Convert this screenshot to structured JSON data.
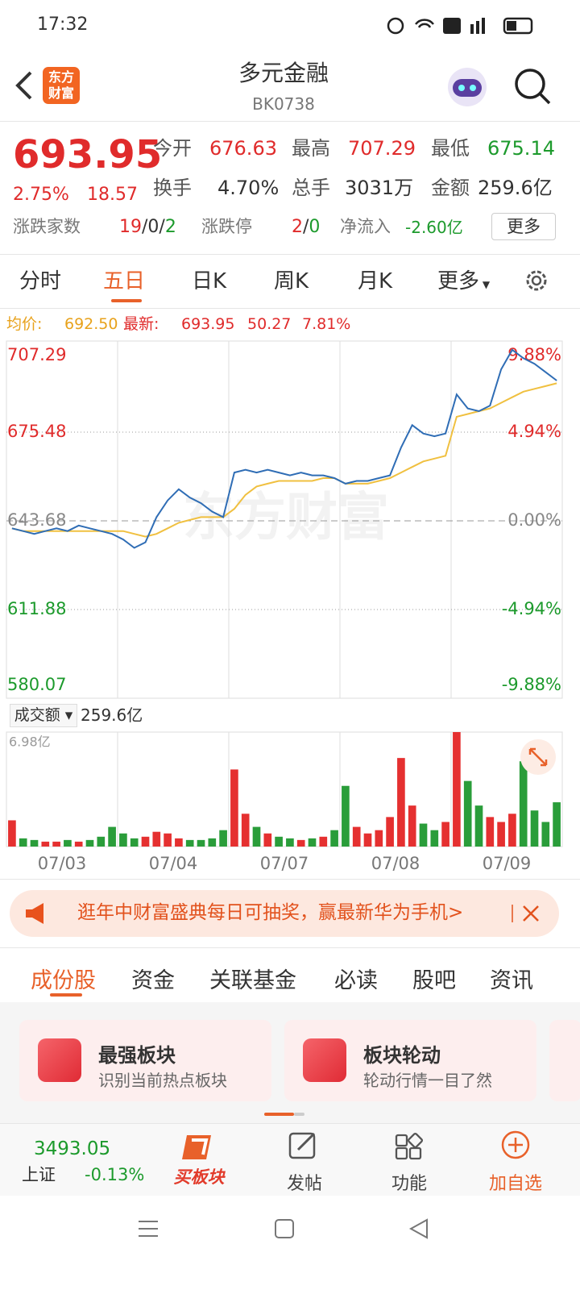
{
  "status": {
    "time": "17:32"
  },
  "header": {
    "logo": [
      "东方",
      "财富"
    ],
    "title": "多元金融",
    "code": "BK0738"
  },
  "quote": {
    "price": "693.95",
    "change_pct": "2.75%",
    "change": "18.57",
    "fields": [
      {
        "label": "今开",
        "value": "676.63",
        "color": "#e02b2b"
      },
      {
        "label": "最高",
        "value": "707.29",
        "color": "#e02b2b"
      },
      {
        "label": "最低",
        "value": "675.14",
        "color": "#1c9a2c"
      },
      {
        "label": "换手",
        "value": "4.70%",
        "color": "#333333"
      },
      {
        "label": "总手",
        "value": "3031万",
        "color": "#333333"
      },
      {
        "label": "金额",
        "value": "259.6亿",
        "color": "#333333"
      }
    ],
    "breadth": {
      "label": "涨跌家数",
      "parts": [
        "19",
        "/",
        "0",
        "/",
        "2"
      ]
    },
    "limit": {
      "label": "涨跌停",
      "parts": [
        "2",
        "/",
        "0"
      ]
    },
    "flow": {
      "label": "净流入",
      "value": "-2.60亿"
    },
    "more": "更多"
  },
  "tabs": {
    "items": [
      "分时",
      "五日",
      "日K",
      "周K",
      "月K",
      "更多"
    ],
    "active": 1
  },
  "legend": {
    "avg_label": "均价:",
    "avg": "692.50",
    "last_label": "最新:",
    "last": "693.95",
    "change": "50.27",
    "pct": "7.81%"
  },
  "watermark": "东方财富",
  "chart_data": {
    "type": "line",
    "xlim": [
      0,
      50
    ],
    "xticks": [
      {
        "value": 5,
        "label": "07/03"
      },
      {
        "value": 15,
        "label": "07/04"
      },
      {
        "value": 25,
        "label": "07/07"
      },
      {
        "value": 35,
        "label": "07/08"
      },
      {
        "value": 45,
        "label": "07/09"
      }
    ],
    "ylim": [
      580.07,
      707.29
    ],
    "yticks": [
      707.29,
      675.48,
      643.68,
      611.88,
      580.07
    ],
    "y2lim": [
      -9.88,
      9.88
    ],
    "y2ticks": [
      {
        "value": 9.88,
        "label": "9.88%"
      },
      {
        "value": 4.94,
        "label": "4.94%"
      },
      {
        "value": 0,
        "label": "0.00%"
      },
      {
        "value": -4.94,
        "label": "-4.94%"
      },
      {
        "value": -9.88,
        "label": "-9.88%"
      }
    ],
    "x": [
      0.5,
      1.5,
      2.5,
      3.5,
      4.5,
      5.5,
      6.5,
      7.5,
      8.5,
      9.5,
      10.5,
      11.5,
      12.5,
      13.5,
      14.5,
      15.5,
      16.5,
      17.5,
      18.5,
      19.5,
      20.5,
      21.5,
      22.5,
      23.5,
      24.5,
      25.5,
      26.5,
      27.5,
      28.5,
      29.5,
      30.5,
      31.5,
      32.5,
      33.5,
      34.5,
      35.5,
      36.5,
      37.5,
      38.5,
      39.5,
      40.5,
      41.5,
      42.5,
      43.5,
      44.5,
      45.5,
      46.5,
      47.5,
      48.5,
      49.5
    ],
    "series": [
      {
        "color": "#2f6db5",
        "values": [
          641,
          640,
          639,
          640,
          641,
          640,
          642,
          641,
          640,
          639,
          637,
          634,
          636,
          645,
          651,
          655,
          652,
          650,
          647,
          645,
          661,
          662,
          661,
          662,
          661,
          660,
          661,
          660,
          660,
          659,
          657,
          658,
          658,
          659,
          660,
          670,
          678,
          675,
          674,
          675,
          689,
          684,
          683,
          685,
          698,
          705,
          702,
          700,
          697,
          694
        ]
      },
      {
        "color": "#f0c040",
        "values": [
          641,
          640,
          640,
          640,
          640,
          640,
          640,
          640,
          640,
          640,
          640,
          639,
          638,
          639,
          641,
          643,
          644,
          645,
          645,
          645,
          648,
          653,
          656,
          657,
          658,
          658,
          658,
          658,
          659,
          659,
          657,
          657,
          657,
          658,
          659,
          661,
          663,
          665,
          666,
          667,
          681,
          682,
          683,
          684,
          686,
          688,
          690,
          691,
          692,
          693
        ]
      }
    ],
    "volume": {
      "label": "成交额",
      "total": "259.6亿",
      "ylim": [
        0,
        6.98
      ],
      "yticks": [
        {
          "value": 6.98,
          "label": "6.98亿"
        }
      ],
      "up_color": "#e53030",
      "down_color": "#2a9d3a",
      "values": [
        1.6,
        0.5,
        0.4,
        0.3,
        0.3,
        0.4,
        0.3,
        0.4,
        0.6,
        1.2,
        0.8,
        0.5,
        0.6,
        0.9,
        0.8,
        0.5,
        0.4,
        0.4,
        0.5,
        1.0,
        4.7,
        2.0,
        1.2,
        0.8,
        0.6,
        0.5,
        0.4,
        0.5,
        0.6,
        1.0,
        3.7,
        1.2,
        0.8,
        1.0,
        1.8,
        5.4,
        2.5,
        1.4,
        1.0,
        1.5,
        6.98,
        4.0,
        2.5,
        1.8,
        1.5,
        2.0,
        5.2,
        2.2,
        1.5,
        2.7
      ]
    }
  },
  "banner": {
    "text": "逛年中财富盛典每日可抽奖，赢最新华为手机>"
  },
  "sections": {
    "items": [
      "成份股",
      "资金",
      "关联基金",
      "必读",
      "股吧",
      "资讯"
    ],
    "active": 0
  },
  "cards": [
    {
      "title": "最强板块",
      "subtitle": "识别当前热点板块"
    },
    {
      "title": "板块轮动",
      "subtitle": "轮动行情一目了然"
    }
  ],
  "bottom": {
    "index_value": "3493.05",
    "index_name": "上证",
    "index_pct": "-0.13%",
    "buy": "买板块",
    "items": [
      "发帖",
      "功能",
      "加自选"
    ]
  }
}
